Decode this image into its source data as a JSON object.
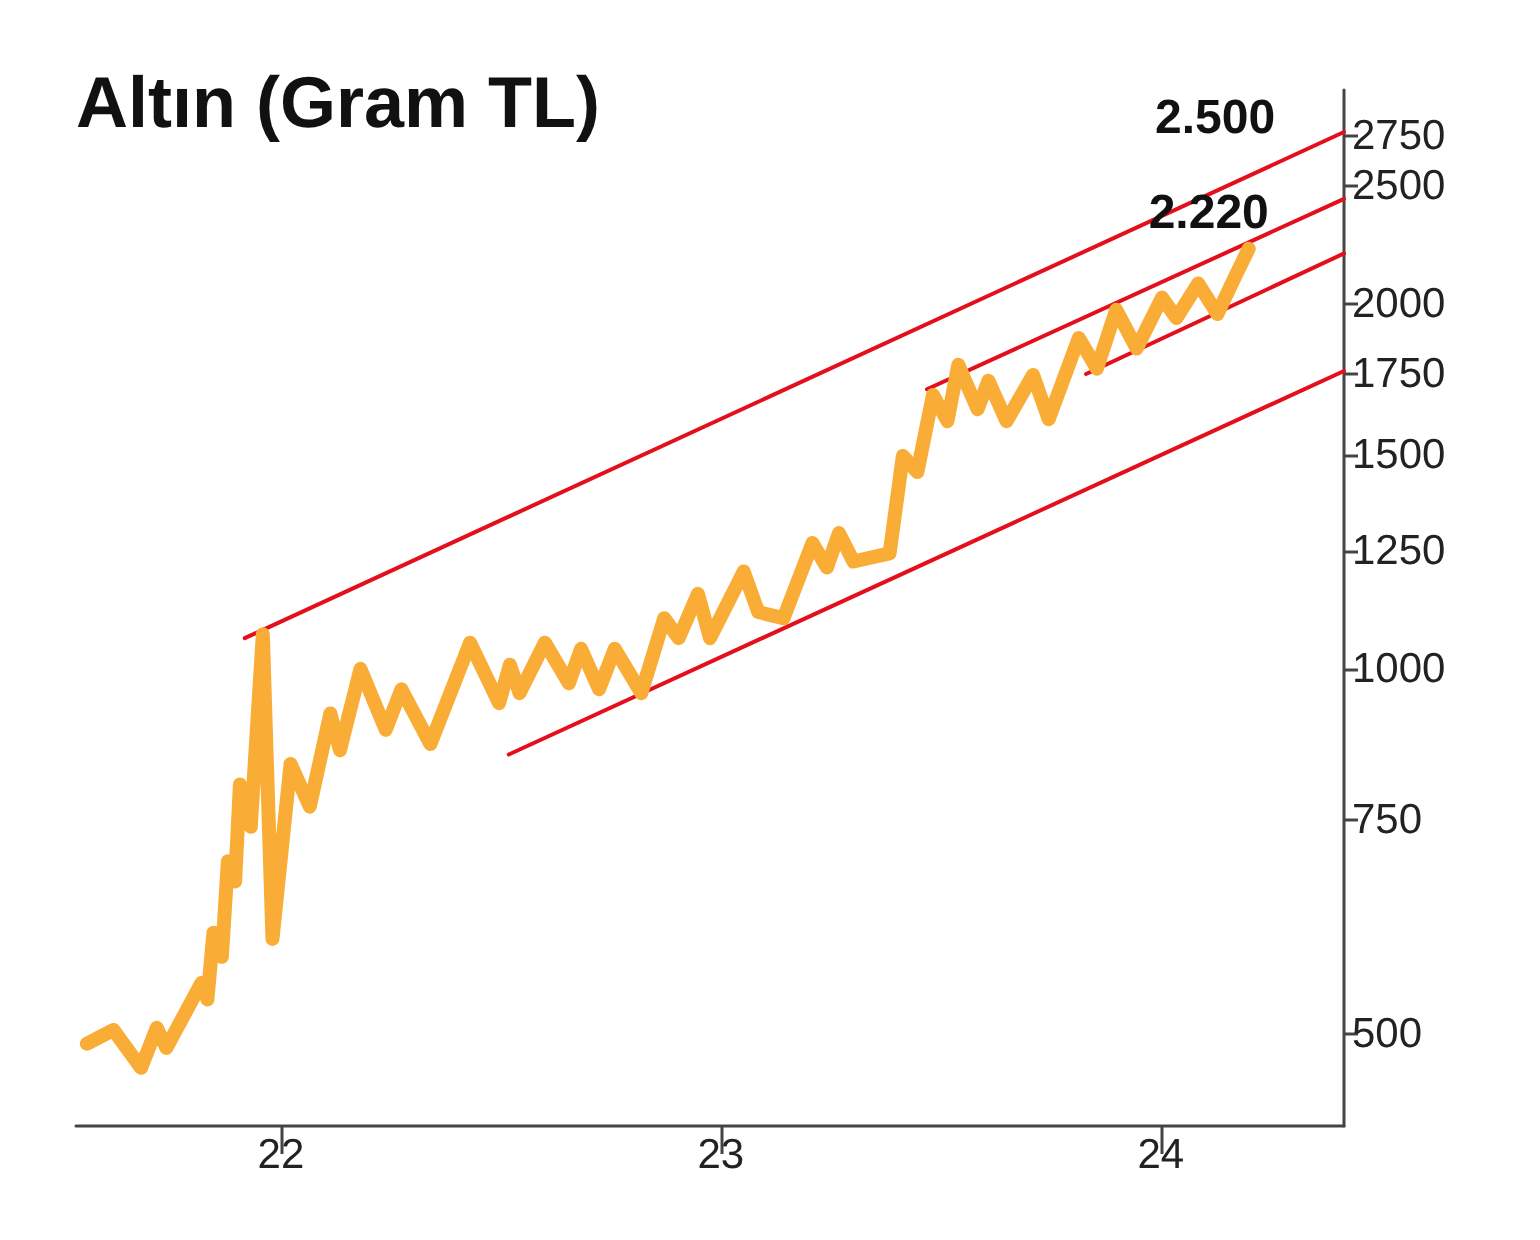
{
  "chart_data": {
    "type": "line",
    "title": "Altın (Gram TL)",
    "log": true,
    "xlim": [
      "2021-07-15",
      "2024-06-01"
    ],
    "xticks": [
      {
        "value": "2022",
        "label": "22"
      },
      {
        "value": "2023",
        "label": "23"
      },
      {
        "value": "2024",
        "label": "24"
      }
    ],
    "ylim": [
      420,
      3000
    ],
    "yticks": [
      500,
      750,
      1000,
      1250,
      1500,
      1750,
      2000,
      2500,
      2750
    ],
    "annotations": [
      {
        "text": "2.500",
        "x": "2024-02-15",
        "y": 2500
      },
      {
        "text": "2.220",
        "x": "2024-03-14",
        "y": 2220
      }
    ],
    "series": [
      {
        "color": "#f9ad36",
        "x": [
          "2021-07-24",
          "2021-08-15",
          "2021-09-07",
          "2021-09-20",
          "2021-09-28",
          "2021-10-27",
          "2021-11-01",
          "2021-11-06",
          "2021-11-13",
          "2021-11-18",
          "2021-11-24",
          "2021-11-28",
          "2021-12-07",
          "2021-12-17",
          "2021-12-25",
          "2022-01-09",
          "2022-01-25",
          "2022-02-11",
          "2022-02-19",
          "2022-03-08",
          "2022-03-29",
          "2022-04-11",
          "2022-05-05",
          "2022-06-07",
          "2022-07-01",
          "2022-07-10",
          "2022-07-18",
          "2022-08-08",
          "2022-08-28",
          "2022-09-07",
          "2022-09-22",
          "2022-10-05",
          "2022-10-27",
          "2022-11-15",
          "2022-11-27",
          "2022-12-13",
          "2022-12-23",
          "2023-01-20",
          "2023-02-01",
          "2023-02-22",
          "2023-03-18",
          "2023-03-30",
          "2023-04-09",
          "2023-04-21",
          "2023-05-21",
          "2023-06-01",
          "2023-06-13",
          "2023-06-26",
          "2023-07-08",
          "2023-07-17",
          "2023-08-02",
          "2023-08-11",
          "2023-08-26",
          "2023-09-17",
          "2023-09-30",
          "2023-10-25",
          "2023-11-09",
          "2023-11-25",
          "2023-12-12",
          "2024-01-02",
          "2024-01-14",
          "2024-02-01",
          "2024-02-17",
          "2024-03-04",
          "2024-03-14"
        ],
        "values": [
          491,
          504,
          469,
          506,
          487,
          551,
          534,
          606,
          579,
          694,
          668,
          803,
          741,
          1068,
          599,
          835,
          770,
          919,
          857,
          1000,
          891,
          962,
          867,
          1051,
          937,
          1008,
          955,
          1051,
          973,
          1039,
          962,
          1039,
          955,
          1101,
          1060,
          1153,
          1060,
          1203,
          1114,
          1101,
          1270,
          1212,
          1294,
          1226,
          1245,
          1498,
          1453,
          1682,
          1600,
          1781,
          1637,
          1728,
          1600,
          1747,
          1606,
          1874,
          1768,
          1977,
          1837,
          2023,
          1946,
          2078,
          1961,
          2119,
          2220
        ]
      },
      {
        "color": "#e3101c",
        "x": [
          "2021-12-02",
          "2024-06-01"
        ],
        "values": [
          1060,
          2770
        ]
      },
      {
        "color": "#e3101c",
        "x": [
          "2023-06-21",
          "2024-06-01"
        ],
        "values": [
          1700,
          2440
        ]
      },
      {
        "color": "#e3101c",
        "x": [
          "2023-10-31",
          "2024-06-01"
        ],
        "values": [
          1750,
          2200
        ]
      },
      {
        "color": "#e3101c",
        "x": [
          "2022-07-09",
          "2024-06-01"
        ],
        "values": [
          850,
          1760
        ]
      }
    ]
  }
}
